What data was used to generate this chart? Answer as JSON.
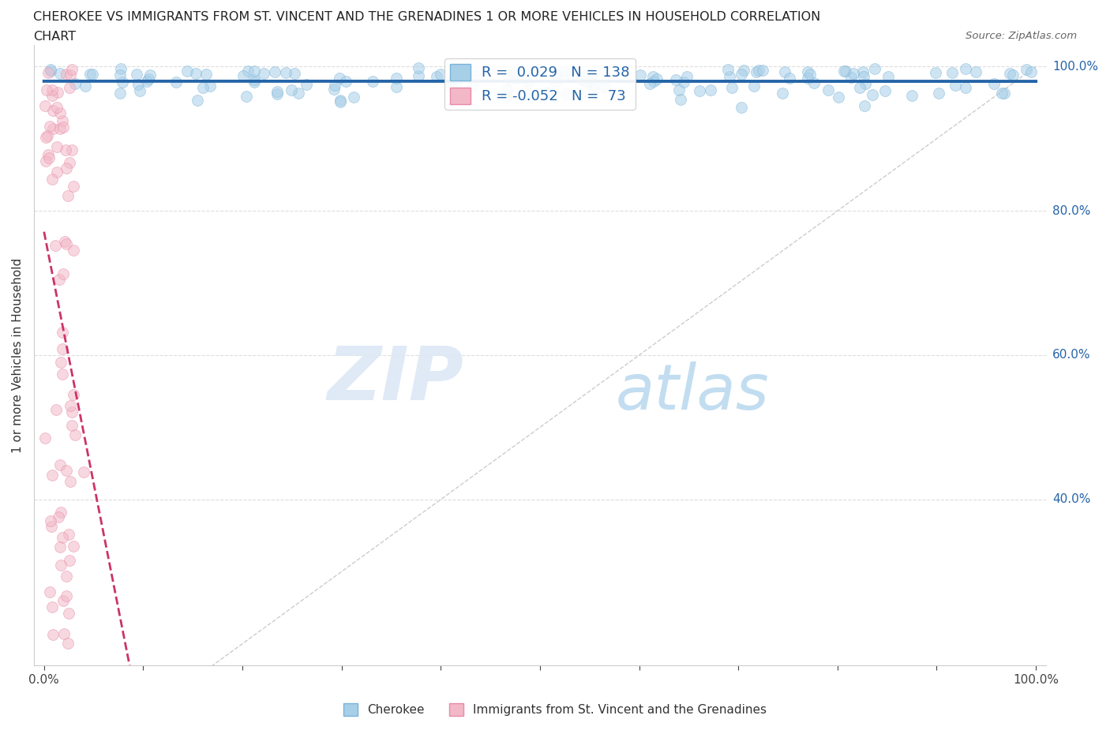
{
  "title_line1": "CHEROKEE VS IMMIGRANTS FROM ST. VINCENT AND THE GRENADINES 1 OR MORE VEHICLES IN HOUSEHOLD CORRELATION",
  "title_line2": "CHART",
  "source_text": "Source: ZipAtlas.com",
  "watermark_zip": "ZIP",
  "watermark_atlas": "atlas",
  "xlabel": "",
  "ylabel": "1 or more Vehicles in Household",
  "cherokee_R": 0.029,
  "cherokee_N": 138,
  "svg_R": -0.052,
  "svg_N": 73,
  "blue_color": "#a8cfe8",
  "blue_edge": "#7ab3d8",
  "pink_color": "#f2b8c8",
  "pink_edge": "#e889a8",
  "trendline_blue_color": "#2565a8",
  "trendline_pink_color": "#cc3366",
  "diagonal_color": "#cccccc",
  "legend_blue_label": "Cherokee",
  "legend_pink_label": "Immigrants from St. Vincent and the Grenadines",
  "marker_size": 100,
  "alpha": 0.55,
  "ylim_min": 0.17,
  "ylim_max": 1.03,
  "xlim_min": -0.01,
  "xlim_max": 1.01
}
